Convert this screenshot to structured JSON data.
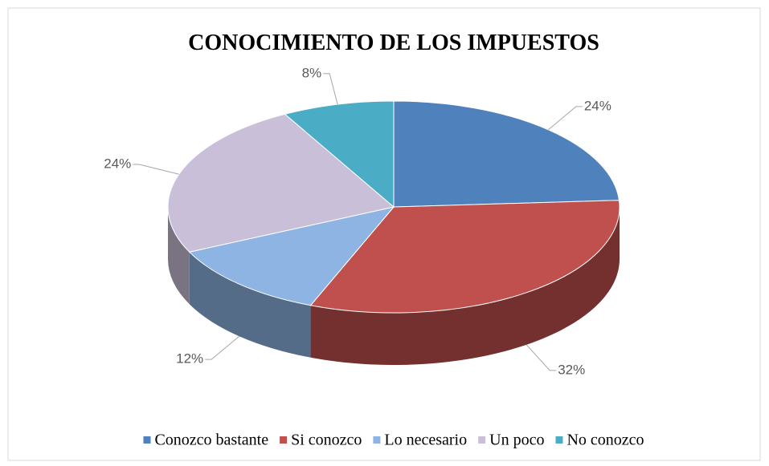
{
  "chart_data": {
    "type": "pie",
    "title": "CONOCIMIENTO DE LOS IMPUESTOS",
    "categories": [
      "Conozco bastante",
      "Si conozco",
      "Lo necesario",
      "Un poco",
      "No conozco"
    ],
    "values": [
      24,
      32,
      12,
      24,
      8
    ],
    "value_labels": [
      "24%",
      "32%",
      "12%",
      "24%",
      "8%"
    ],
    "colors": [
      "#4f81bd",
      "#c0504d",
      "#8eb4e3",
      "#c9bfd9",
      "#4bacc6"
    ],
    "legend": "bottom"
  }
}
